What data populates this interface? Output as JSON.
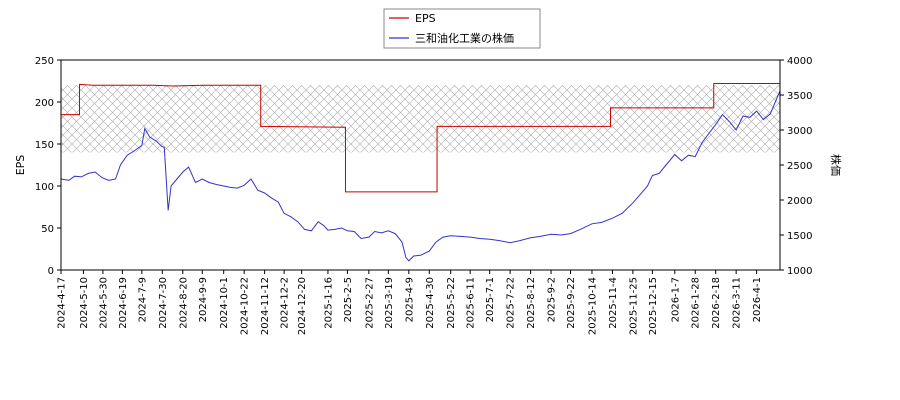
{
  "chart_data": {
    "type": "line",
    "legend": {
      "placement": "top-center",
      "entries": [
        {
          "label": "EPS",
          "color": "#cc0000"
        },
        {
          "label": "三和油化工業の株価",
          "color": "#3333cc"
        }
      ]
    },
    "ylabel_left": "EPS",
    "ylabel_right": "株価",
    "ylim_left": [
      0,
      250
    ],
    "ylim_right": [
      1000,
      4000
    ],
    "yticks_left": [
      "0",
      "50",
      "100",
      "150",
      "200",
      "250"
    ],
    "yticks_right": [
      "1000",
      "1500",
      "2000",
      "2500",
      "3000",
      "3500",
      "4000"
    ],
    "xlim": [
      "2024-04-17",
      "2026-04-25"
    ],
    "x_tick_labels": [
      "2024-4-17",
      "2024-5-10",
      "2024-5-30",
      "2024-6-19",
      "2024-7-9",
      "2024-7-30",
      "2024-8-20",
      "2024-9-9",
      "2024-10-1",
      "2024-10-22",
      "2024-11-12",
      "2024-12-2",
      "2024-12-20",
      "2025-1-16",
      "2025-2-5",
      "2025-2-27",
      "2025-3-19",
      "2025-4-9",
      "2025-4-30",
      "2025-5-22",
      "2025-6-11",
      "2025-7-1",
      "2025-7-22",
      "2025-8-12",
      "2025-9-2",
      "2025-9-22",
      "2025-10-14",
      "2025-11-4",
      "2025-11-25",
      "2025-12-15",
      "2026-1-7",
      "2026-1-28",
      "2026-2-18",
      "2026-3-11",
      "2026-4-1"
    ],
    "x_tick_dates": [
      "2024-04-17",
      "2024-05-10",
      "2024-05-30",
      "2024-06-19",
      "2024-07-09",
      "2024-07-30",
      "2024-08-20",
      "2024-09-09",
      "2024-10-01",
      "2024-10-22",
      "2024-11-12",
      "2024-12-02",
      "2024-12-20",
      "2025-01-16",
      "2025-02-05",
      "2025-02-27",
      "2025-03-19",
      "2025-04-09",
      "2025-04-30",
      "2025-05-22",
      "2025-06-11",
      "2025-07-01",
      "2025-07-22",
      "2025-08-12",
      "2025-09-02",
      "2025-09-22",
      "2025-10-14",
      "2025-11-04",
      "2025-11-25",
      "2025-12-15",
      "2026-01-07",
      "2026-01-28",
      "2026-02-18",
      "2026-03-11",
      "2026-04-01"
    ],
    "grid": false,
    "hatched_band_left": [
      140,
      220
    ],
    "series": [
      {
        "name": "EPS",
        "axis": "left",
        "color": "#cc0000",
        "step": true,
        "points": [
          [
            "2024-04-17",
            185
          ],
          [
            "2024-05-06",
            185
          ],
          [
            "2024-05-06",
            221
          ],
          [
            "2024-05-20",
            220
          ],
          [
            "2024-07-20",
            220
          ],
          [
            "2024-08-10",
            219
          ],
          [
            "2024-09-10",
            220
          ],
          [
            "2024-11-08",
            220
          ],
          [
            "2024-11-08",
            171
          ],
          [
            "2025-02-03",
            170
          ],
          [
            "2025-02-03",
            93
          ],
          [
            "2025-05-08",
            93
          ],
          [
            "2025-05-08",
            171
          ],
          [
            "2025-07-10",
            171
          ],
          [
            "2025-08-20",
            171
          ],
          [
            "2025-11-02",
            171
          ],
          [
            "2025-11-02",
            193
          ],
          [
            "2026-02-16",
            193
          ],
          [
            "2026-02-16",
            222
          ],
          [
            "2026-04-25",
            222
          ]
        ]
      },
      {
        "name": "三和油化工業の株価",
        "axis": "right",
        "color": "#3333cc",
        "step": false,
        "points": [
          [
            "2024-04-17",
            2300
          ],
          [
            "2024-04-25",
            2280
          ],
          [
            "2024-05-01",
            2340
          ],
          [
            "2024-05-08",
            2330
          ],
          [
            "2024-05-15",
            2380
          ],
          [
            "2024-05-22",
            2400
          ],
          [
            "2024-05-29",
            2320
          ],
          [
            "2024-06-05",
            2280
          ],
          [
            "2024-06-12",
            2300
          ],
          [
            "2024-06-17",
            2500
          ],
          [
            "2024-06-24",
            2640
          ],
          [
            "2024-07-01",
            2700
          ],
          [
            "2024-07-09",
            2780
          ],
          [
            "2024-07-12",
            3020
          ],
          [
            "2024-07-17",
            2900
          ],
          [
            "2024-07-24",
            2840
          ],
          [
            "2024-07-29",
            2770
          ],
          [
            "2024-08-01",
            2750
          ],
          [
            "2024-08-05",
            1850
          ],
          [
            "2024-08-08",
            2200
          ],
          [
            "2024-08-14",
            2300
          ],
          [
            "2024-08-20",
            2400
          ],
          [
            "2024-08-26",
            2470
          ],
          [
            "2024-09-02",
            2250
          ],
          [
            "2024-09-09",
            2300
          ],
          [
            "2024-09-16",
            2250
          ],
          [
            "2024-09-24",
            2220
          ],
          [
            "2024-10-01",
            2200
          ],
          [
            "2024-10-08",
            2180
          ],
          [
            "2024-10-15",
            2170
          ],
          [
            "2024-10-22",
            2210
          ],
          [
            "2024-10-29",
            2300
          ],
          [
            "2024-11-05",
            2140
          ],
          [
            "2024-11-12",
            2100
          ],
          [
            "2024-11-19",
            2030
          ],
          [
            "2024-11-26",
            1970
          ],
          [
            "2024-12-02",
            1810
          ],
          [
            "2024-12-09",
            1760
          ],
          [
            "2024-12-16",
            1690
          ],
          [
            "2024-12-23",
            1580
          ],
          [
            "2024-12-30",
            1560
          ],
          [
            "2025-01-06",
            1690
          ],
          [
            "2025-01-12",
            1630
          ],
          [
            "2025-01-16",
            1570
          ],
          [
            "2025-01-23",
            1580
          ],
          [
            "2025-01-30",
            1600
          ],
          [
            "2025-02-05",
            1560
          ],
          [
            "2025-02-12",
            1550
          ],
          [
            "2025-02-19",
            1450
          ],
          [
            "2025-02-27",
            1470
          ],
          [
            "2025-03-05",
            1550
          ],
          [
            "2025-03-12",
            1530
          ],
          [
            "2025-03-19",
            1560
          ],
          [
            "2025-03-26",
            1520
          ],
          [
            "2025-04-02",
            1400
          ],
          [
            "2025-04-06",
            1180
          ],
          [
            "2025-04-09",
            1130
          ],
          [
            "2025-04-14",
            1200
          ],
          [
            "2025-04-21",
            1210
          ],
          [
            "2025-04-30",
            1270
          ],
          [
            "2025-05-07",
            1400
          ],
          [
            "2025-05-14",
            1470
          ],
          [
            "2025-05-22",
            1490
          ],
          [
            "2025-06-01",
            1480
          ],
          [
            "2025-06-11",
            1470
          ],
          [
            "2025-06-21",
            1450
          ],
          [
            "2025-07-01",
            1440
          ],
          [
            "2025-07-11",
            1420
          ],
          [
            "2025-07-22",
            1390
          ],
          [
            "2025-08-01",
            1420
          ],
          [
            "2025-08-12",
            1460
          ],
          [
            "2025-08-22",
            1480
          ],
          [
            "2025-09-02",
            1510
          ],
          [
            "2025-09-12",
            1500
          ],
          [
            "2025-09-22",
            1520
          ],
          [
            "2025-10-02",
            1580
          ],
          [
            "2025-10-14",
            1660
          ],
          [
            "2025-10-24",
            1680
          ],
          [
            "2025-11-04",
            1740
          ],
          [
            "2025-11-14",
            1810
          ],
          [
            "2025-11-25",
            1960
          ],
          [
            "2025-12-02",
            2070
          ],
          [
            "2025-12-10",
            2200
          ],
          [
            "2025-12-15",
            2350
          ],
          [
            "2025-12-22",
            2380
          ],
          [
            "2025-12-29",
            2500
          ],
          [
            "2026-01-07",
            2650
          ],
          [
            "2026-01-14",
            2560
          ],
          [
            "2026-01-21",
            2640
          ],
          [
            "2026-01-28",
            2620
          ],
          [
            "2026-02-04",
            2820
          ],
          [
            "2026-02-11",
            2950
          ],
          [
            "2026-02-18",
            3080
          ],
          [
            "2026-02-25",
            3220
          ],
          [
            "2026-03-04",
            3120
          ],
          [
            "2026-03-11",
            3000
          ],
          [
            "2026-03-18",
            3200
          ],
          [
            "2026-03-25",
            3180
          ],
          [
            "2026-04-01",
            3270
          ],
          [
            "2026-04-08",
            3150
          ],
          [
            "2026-04-15",
            3230
          ],
          [
            "2026-04-25",
            3560
          ]
        ]
      }
    ]
  }
}
